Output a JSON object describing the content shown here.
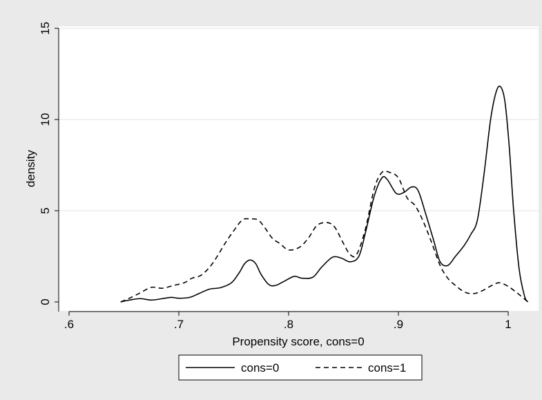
{
  "chart_data": {
    "type": "line",
    "xlabel": "Propensity score, cons=0",
    "ylabel": "density",
    "xlim": [
      0.6,
      1.0
    ],
    "ylim": [
      0,
      15
    ],
    "x_ticks": [
      {
        "value": 0.6,
        "label": ".6"
      },
      {
        "value": 0.7,
        "label": ".7"
      },
      {
        "value": 0.8,
        "label": ".8"
      },
      {
        "value": 0.9,
        "label": ".9"
      },
      {
        "value": 1.0,
        "label": "1"
      }
    ],
    "y_ticks": [
      {
        "value": 0,
        "label": "0"
      },
      {
        "value": 5,
        "label": "5"
      },
      {
        "value": 10,
        "label": "10"
      },
      {
        "value": 15,
        "label": "15"
      }
    ],
    "grid": "horizontal",
    "legend": "bottom",
    "series": [
      {
        "name": "cons=0",
        "style": "solid",
        "color": "#000000",
        "points": [
          [
            0.647,
            0.0
          ],
          [
            0.655,
            0.1
          ],
          [
            0.665,
            0.18
          ],
          [
            0.675,
            0.1
          ],
          [
            0.685,
            0.18
          ],
          [
            0.693,
            0.25
          ],
          [
            0.7,
            0.2
          ],
          [
            0.71,
            0.25
          ],
          [
            0.718,
            0.45
          ],
          [
            0.728,
            0.7
          ],
          [
            0.738,
            0.78
          ],
          [
            0.748,
            1.05
          ],
          [
            0.755,
            1.6
          ],
          [
            0.76,
            2.1
          ],
          [
            0.765,
            2.3
          ],
          [
            0.77,
            2.1
          ],
          [
            0.775,
            1.5
          ],
          [
            0.782,
            0.95
          ],
          [
            0.788,
            0.9
          ],
          [
            0.795,
            1.1
          ],
          [
            0.805,
            1.4
          ],
          [
            0.812,
            1.3
          ],
          [
            0.822,
            1.35
          ],
          [
            0.83,
            1.9
          ],
          [
            0.84,
            2.45
          ],
          [
            0.848,
            2.4
          ],
          [
            0.856,
            2.2
          ],
          [
            0.864,
            2.5
          ],
          [
            0.87,
            3.8
          ],
          [
            0.878,
            5.8
          ],
          [
            0.885,
            6.8
          ],
          [
            0.89,
            6.7
          ],
          [
            0.898,
            5.95
          ],
          [
            0.905,
            6.0
          ],
          [
            0.912,
            6.3
          ],
          [
            0.918,
            6.1
          ],
          [
            0.925,
            4.8
          ],
          [
            0.932,
            3.4
          ],
          [
            0.938,
            2.2
          ],
          [
            0.945,
            2.0
          ],
          [
            0.952,
            2.5
          ],
          [
            0.96,
            3.1
          ],
          [
            0.966,
            3.7
          ],
          [
            0.972,
            4.5
          ],
          [
            0.978,
            7.0
          ],
          [
            0.984,
            10.0
          ],
          [
            0.989,
            11.5
          ],
          [
            0.993,
            11.8
          ],
          [
            0.997,
            11.0
          ],
          [
            1.001,
            8.5
          ],
          [
            1.005,
            5.0
          ],
          [
            1.01,
            1.8
          ],
          [
            1.015,
            0.3
          ],
          [
            1.018,
            0.0
          ]
        ]
      },
      {
        "name": "cons=1",
        "style": "dashed",
        "color": "#000000",
        "points": [
          [
            0.647,
            0.0
          ],
          [
            0.655,
            0.2
          ],
          [
            0.665,
            0.5
          ],
          [
            0.675,
            0.8
          ],
          [
            0.685,
            0.75
          ],
          [
            0.695,
            0.9
          ],
          [
            0.705,
            1.05
          ],
          [
            0.712,
            1.3
          ],
          [
            0.72,
            1.45
          ],
          [
            0.728,
            1.9
          ],
          [
            0.735,
            2.5
          ],
          [
            0.742,
            3.2
          ],
          [
            0.75,
            3.9
          ],
          [
            0.758,
            4.5
          ],
          [
            0.765,
            4.55
          ],
          [
            0.772,
            4.5
          ],
          [
            0.778,
            4.1
          ],
          [
            0.785,
            3.5
          ],
          [
            0.792,
            3.2
          ],
          [
            0.8,
            2.85
          ],
          [
            0.81,
            3.0
          ],
          [
            0.818,
            3.5
          ],
          [
            0.826,
            4.2
          ],
          [
            0.835,
            4.35
          ],
          [
            0.842,
            4.1
          ],
          [
            0.85,
            3.2
          ],
          [
            0.856,
            2.6
          ],
          [
            0.862,
            2.6
          ],
          [
            0.87,
            4.0
          ],
          [
            0.878,
            6.2
          ],
          [
            0.885,
            7.1
          ],
          [
            0.892,
            7.1
          ],
          [
            0.9,
            6.8
          ],
          [
            0.908,
            5.7
          ],
          [
            0.915,
            5.3
          ],
          [
            0.922,
            4.5
          ],
          [
            0.93,
            3.3
          ],
          [
            0.938,
            2.0
          ],
          [
            0.945,
            1.3
          ],
          [
            0.952,
            0.9
          ],
          [
            0.96,
            0.55
          ],
          [
            0.968,
            0.45
          ],
          [
            0.976,
            0.6
          ],
          [
            0.985,
            0.9
          ],
          [
            0.992,
            1.05
          ],
          [
            1.0,
            0.85
          ],
          [
            1.008,
            0.5
          ],
          [
            1.015,
            0.15
          ],
          [
            1.018,
            0.0
          ]
        ]
      }
    ]
  }
}
